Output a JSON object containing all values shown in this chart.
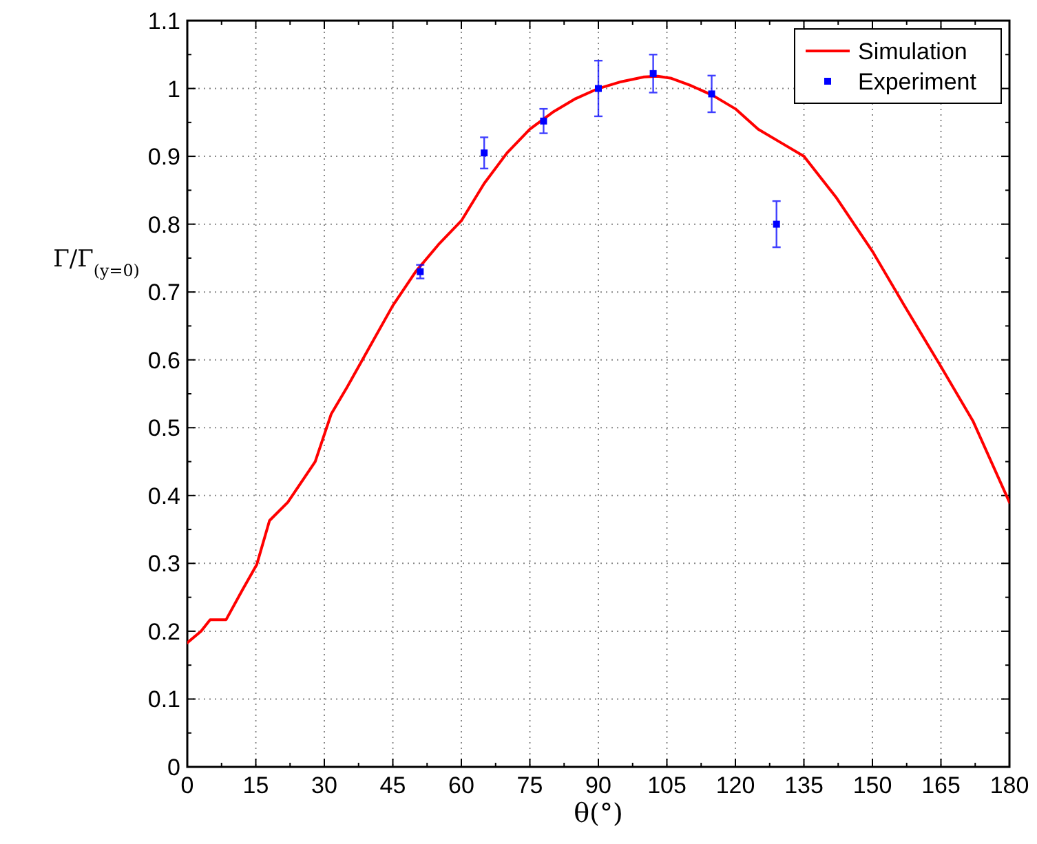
{
  "chart_data": {
    "type": "line",
    "xlabel": "θ(°)",
    "ylabel": "Γ/Γ$_{(y=0)}$",
    "xlim": [
      0,
      180
    ],
    "xticks": [
      0,
      15,
      30,
      45,
      60,
      75,
      90,
      105,
      120,
      135,
      150,
      165,
      180
    ],
    "ylim": [
      0,
      1.1
    ],
    "yticks": [
      0,
      0.1,
      0.2,
      0.3,
      0.4,
      0.5,
      0.6,
      0.7,
      0.8,
      0.9,
      1,
      1.1
    ],
    "grid": true,
    "legend": "top right",
    "series": [
      {
        "name": "Simulation",
        "color": "#ff0000",
        "marker": "none",
        "line_style": "solid",
        "x": [
          0,
          3,
          5,
          8.5,
          12,
          15.2,
          18,
          22,
          28,
          31.5,
          35,
          40,
          45,
          50,
          55,
          60,
          65,
          70,
          75,
          80,
          85,
          90,
          95,
          100,
          103,
          106,
          110,
          115,
          120,
          125,
          130,
          135,
          142,
          150,
          157,
          165,
          172,
          180
        ],
        "values": [
          0.183,
          0.2,
          0.217,
          0.217,
          0.26,
          0.298,
          0.363,
          0.39,
          0.45,
          0.52,
          0.56,
          0.62,
          0.68,
          0.73,
          0.77,
          0.805,
          0.86,
          0.905,
          0.94,
          0.965,
          0.985,
          1.0,
          1.01,
          1.017,
          1.018,
          1.015,
          1.005,
          0.99,
          0.97,
          0.94,
          0.92,
          0.9,
          0.84,
          0.76,
          0.68,
          0.59,
          0.51,
          0.39
        ]
      },
      {
        "name": "Experiment",
        "type": "scatter",
        "color": "#0000ff",
        "marker": "square",
        "x": [
          51,
          65,
          78,
          90,
          102,
          114.8,
          129
        ],
        "values": [
          0.73,
          0.905,
          0.952,
          1.0,
          1.022,
          0.992,
          0.8
        ],
        "errors": [
          0.01,
          0.023,
          0.018,
          0.041,
          0.028,
          0.027,
          0.034
        ]
      }
    ]
  }
}
